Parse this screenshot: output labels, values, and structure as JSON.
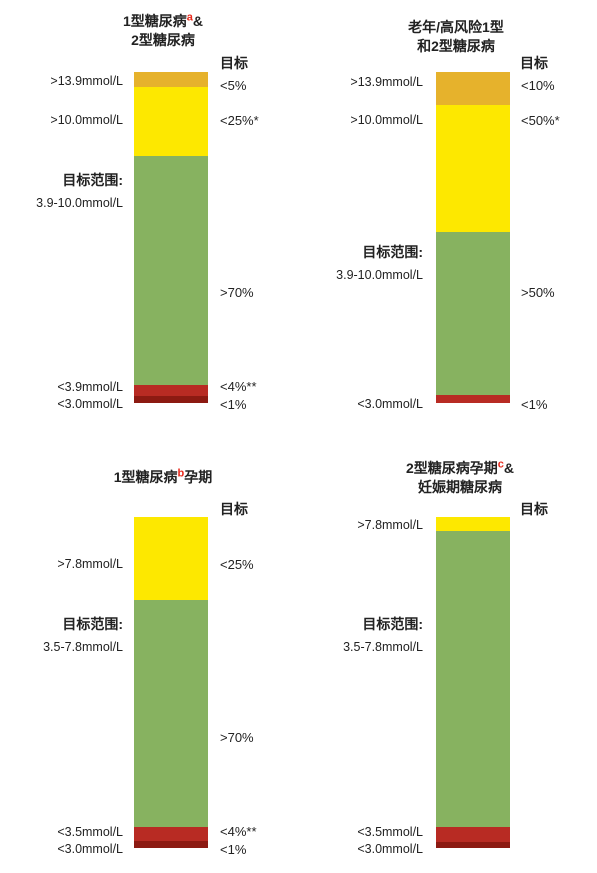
{
  "colors": {
    "very_high": "#e6b22c",
    "high": "#fde800",
    "in_range": "#87b260",
    "low": "#b82b23",
    "very_low": "#8c1a12",
    "superscript": "#e8291c"
  },
  "chart_data": [
    {
      "type": "stacked-bar",
      "title_lines": [
        "1型糖尿病",
        "2型糖尿病"
      ],
      "title_line1_suffix": "&",
      "title_sup": "a",
      "target_header": "目标",
      "segments": [
        {
          "range": ">13.9mmol/L",
          "target": "<5%",
          "share": 5,
          "color_key": "very_high"
        },
        {
          "range": ">10.0mmol/L",
          "target": "<25%*",
          "share": 21,
          "color_key": "high"
        },
        {
          "range_heading": "目标范围:",
          "range": "3.9-10.0mmol/L",
          "target": ">70%",
          "share": 70,
          "color_key": "in_range"
        },
        {
          "range": "<3.9mmol/L",
          "target": "<4%**",
          "share": 3,
          "color_key": "low"
        },
        {
          "range": "<3.0mmol/L",
          "target": "<1%",
          "share": 1,
          "color_key": "very_low"
        }
      ]
    },
    {
      "type": "stacked-bar",
      "title_lines": [
        "老年/高风险1型",
        "和2型糖尿病"
      ],
      "title_line1_suffix": "",
      "title_sup": "",
      "target_header": "目标",
      "segments": [
        {
          "range": ">13.9mmol/L",
          "target": "<10%",
          "share": 10,
          "color_key": "very_high"
        },
        {
          "range": ">10.0mmol/L",
          "target": "<50%*",
          "share": 39,
          "color_key": "high"
        },
        {
          "range_heading": "目标范围:",
          "range": "3.9-10.0mmol/L",
          "target": ">50%",
          "share": 49,
          "color_key": "in_range"
        },
        {
          "range": "<3.0mmol/L",
          "target": "<1%",
          "share": 2,
          "color_key": "low"
        }
      ]
    },
    {
      "type": "stacked-bar",
      "title_lines": [
        "1型糖尿病孕期"
      ],
      "title_line1_suffix": "",
      "title_sup": "b",
      "sup_after": "1型糖尿病",
      "target_header": "目标",
      "segments": [
        {
          "range": ">7.8mmol/L",
          "target": "<25%",
          "share": 25,
          "color_key": "high"
        },
        {
          "range_heading": "目标范围:",
          "range": "3.5-7.8mmol/L",
          "target": ">70%",
          "share": 70,
          "color_key": "in_range"
        },
        {
          "range": "<3.5mmol/L",
          "target": "<4%**",
          "share": 4,
          "color_key": "low"
        },
        {
          "range": "<3.0mmol/L",
          "target": "<1%",
          "share": 1,
          "color_key": "very_low"
        }
      ]
    },
    {
      "type": "stacked-bar",
      "title_lines": [
        "2型糖尿病孕期",
        "妊娠期糖尿病"
      ],
      "title_line1_suffix": "&",
      "title_sup": "c",
      "target_header": "目标",
      "segments": [
        {
          "range": ">7.8mmol/L",
          "target": "",
          "share": 4,
          "color_key": "high"
        },
        {
          "range_heading": "目标范围:",
          "range": "3.5-7.8mmol/L",
          "target": "",
          "share": 90,
          "color_key": "in_range"
        },
        {
          "range": "<3.5mmol/L",
          "target": "",
          "share": 4,
          "color_key": "low"
        },
        {
          "range": "<3.0mmol/L",
          "target": "",
          "share": 2,
          "color_key": "very_low"
        }
      ]
    }
  ]
}
